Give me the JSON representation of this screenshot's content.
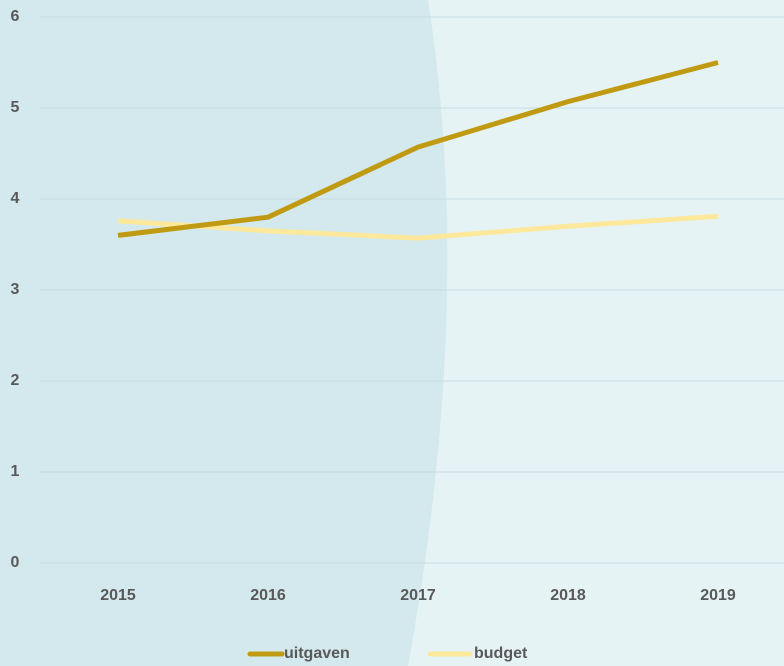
{
  "chart_data": {
    "type": "line",
    "categories": [
      "2015",
      "2016",
      "2017",
      "2018",
      "2019"
    ],
    "series": [
      {
        "name": "uitgaven",
        "color": "#c09a12",
        "values": [
          3.6,
          3.8,
          4.57,
          5.07,
          5.5
        ]
      },
      {
        "name": "budget",
        "color": "#fde89c",
        "values": [
          3.76,
          3.65,
          3.57,
          3.7,
          3.81
        ]
      }
    ],
    "ylim": [
      0,
      6
    ],
    "yticks": [
      0,
      1,
      2,
      3,
      4,
      5,
      6
    ],
    "grid": true,
    "legend": "bottom"
  }
}
